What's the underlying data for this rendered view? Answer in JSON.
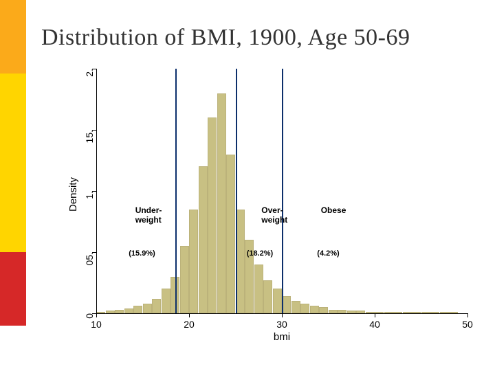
{
  "title": "Distribution of BMI, 1900, Age 50-69",
  "colors": {
    "stripe_orange": "#fbaa1a",
    "stripe_yellow": "#ffd500",
    "stripe_red": "#d62828",
    "bar_fill": "#c8c083",
    "bar_border": "#bbb27a",
    "vline": "#0c2f6b",
    "axis": "#000000",
    "bg": "#ffffff",
    "title_color": "#333333"
  },
  "chart": {
    "type": "histogram",
    "xlim": [
      10,
      50
    ],
    "ylim": [
      0,
      0.2
    ],
    "yticks": [
      0,
      0.05,
      0.1,
      0.15,
      0.2
    ],
    "ytick_labels": [
      "0",
      ".05",
      ".1",
      ".15",
      ".2"
    ],
    "xticks": [
      10,
      20,
      30,
      40,
      50
    ],
    "xtick_labels": [
      "10",
      "20",
      "30",
      "40",
      "50"
    ],
    "xaxis_label": "bmi",
    "yaxis_label": "Density",
    "bar_width_x": 1,
    "bars": [
      {
        "x": 10,
        "y": 0.001
      },
      {
        "x": 11,
        "y": 0.002
      },
      {
        "x": 12,
        "y": 0.003
      },
      {
        "x": 13,
        "y": 0.004
      },
      {
        "x": 14,
        "y": 0.006
      },
      {
        "x": 15,
        "y": 0.008
      },
      {
        "x": 16,
        "y": 0.012
      },
      {
        "x": 17,
        "y": 0.02
      },
      {
        "x": 18,
        "y": 0.03
      },
      {
        "x": 19,
        "y": 0.055
      },
      {
        "x": 20,
        "y": 0.085
      },
      {
        "x": 21,
        "y": 0.12
      },
      {
        "x": 22,
        "y": 0.16
      },
      {
        "x": 23,
        "y": 0.18
      },
      {
        "x": 24,
        "y": 0.13
      },
      {
        "x": 25,
        "y": 0.085
      },
      {
        "x": 26,
        "y": 0.06
      },
      {
        "x": 27,
        "y": 0.04
      },
      {
        "x": 28,
        "y": 0.027
      },
      {
        "x": 29,
        "y": 0.02
      },
      {
        "x": 30,
        "y": 0.014
      },
      {
        "x": 31,
        "y": 0.01
      },
      {
        "x": 32,
        "y": 0.008
      },
      {
        "x": 33,
        "y": 0.006
      },
      {
        "x": 34,
        "y": 0.005
      },
      {
        "x": 35,
        "y": 0.003
      },
      {
        "x": 36,
        "y": 0.003
      },
      {
        "x": 37,
        "y": 0.002
      },
      {
        "x": 38,
        "y": 0.002
      },
      {
        "x": 39,
        "y": 0.001
      },
      {
        "x": 40,
        "y": 0.001
      },
      {
        "x": 41,
        "y": 0.001
      },
      {
        "x": 42,
        "y": 0.001
      },
      {
        "x": 43,
        "y": 0.001
      },
      {
        "x": 44,
        "y": 0.0
      },
      {
        "x": 45,
        "y": 0.001
      },
      {
        "x": 46,
        "y": 0.001
      },
      {
        "x": 47,
        "y": 0.0
      },
      {
        "x": 48,
        "y": 0.001
      }
    ],
    "vlines": [
      18.5,
      25,
      30
    ],
    "annotations": [
      {
        "label_top": "Under-",
        "label_bot": "weight",
        "value": "(15.9%)",
        "x_label": 14.2,
        "x_value": 13.5
      },
      {
        "label_top": "Over-",
        "label_bot": "weight",
        "value": "(18.2%)",
        "x_label": 27.8,
        "x_value": 26.2
      },
      {
        "label_top": "Obese",
        "label_bot": "",
        "value": "(4.2%)",
        "x_label": 34.2,
        "x_value": 33.8
      }
    ],
    "annot_y_label": 0.088,
    "annot_y_value": 0.052,
    "tick_len": 6,
    "title_fontsize": 34,
    "axis_label_fontsize": 15,
    "tick_fontsize": 14,
    "annot_fontsize": 12,
    "annot_val_fontsize": 11
  }
}
